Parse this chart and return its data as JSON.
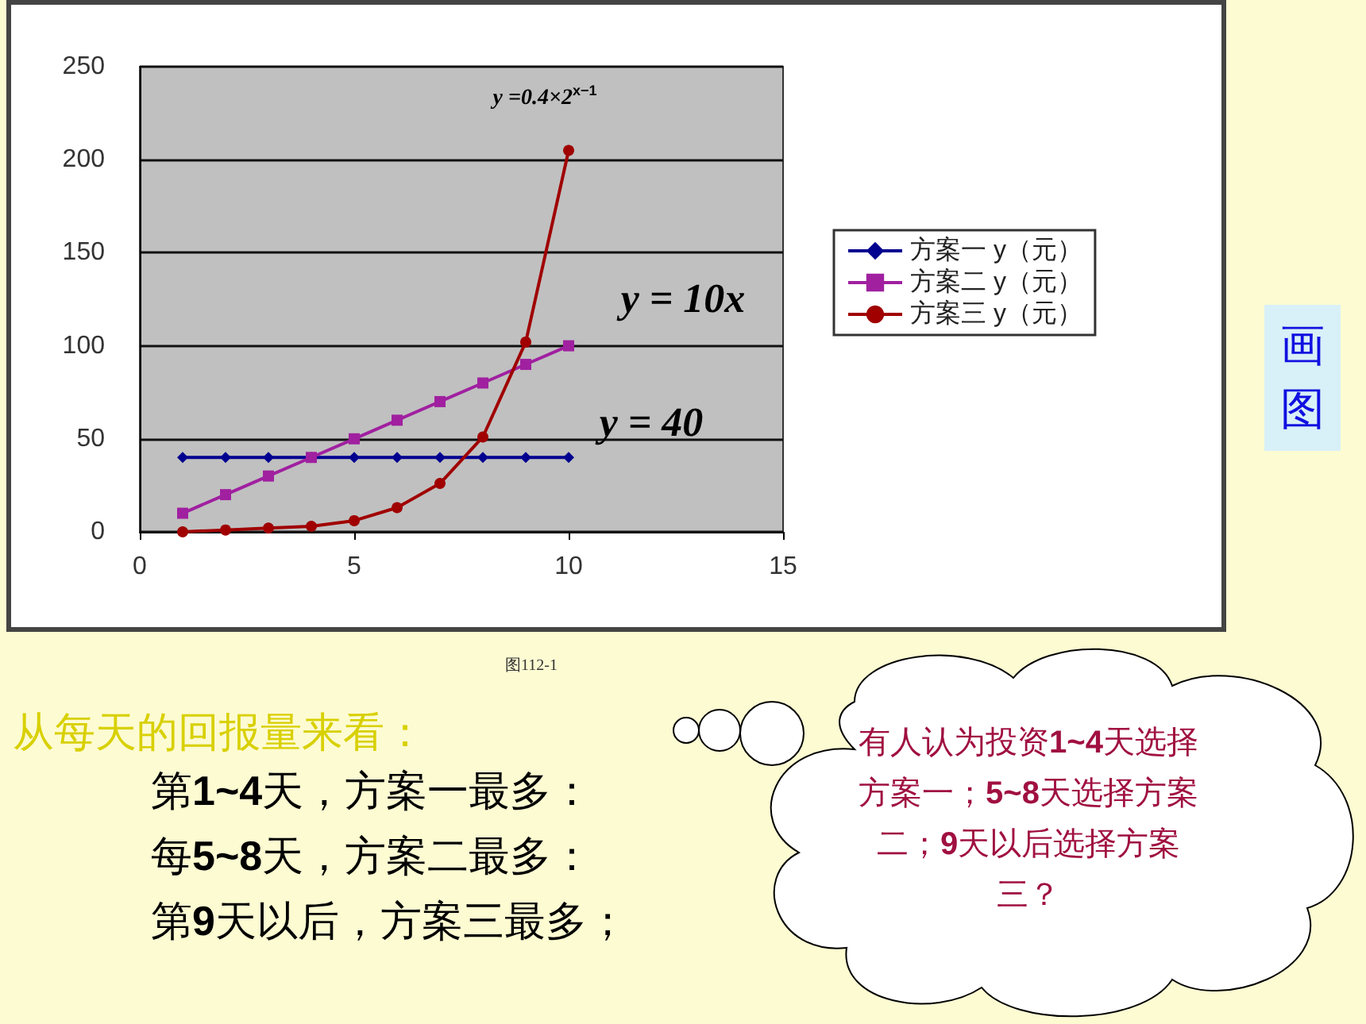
{
  "chart_data": {
    "type": "line",
    "x": [
      1,
      2,
      3,
      4,
      5,
      6,
      7,
      8,
      9,
      10
    ],
    "series": [
      {
        "name": "方案一 y（元）",
        "color": "#000090",
        "marker": "diamond",
        "values": [
          40,
          40,
          40,
          40,
          40,
          40,
          40,
          40,
          40,
          40
        ]
      },
      {
        "name": "方案二 y（元）",
        "color": "#a020a0",
        "marker": "square",
        "values": [
          10,
          20,
          30,
          40,
          50,
          60,
          70,
          80,
          90,
          100
        ]
      },
      {
        "name": "方案三 y（元）",
        "color": "#a00000",
        "marker": "circle",
        "values": [
          0,
          1,
          2,
          3,
          6,
          13,
          26,
          51,
          102,
          205
        ]
      }
    ],
    "xlim": [
      0,
      15
    ],
    "xticks": [
      0,
      5,
      10,
      15
    ],
    "ylim": [
      0,
      250
    ],
    "yticks": [
      0,
      50,
      100,
      150,
      200,
      250
    ],
    "grid": "y",
    "legend": "right",
    "line_style": "solid",
    "annotations": [
      "y =0.4×2$^{x−1}$",
      "y = 10x",
      "y = 40",
      "画图",
      "图112-1",
      "从每天的回报量来看：",
      "第1~4天，方案一最多：",
      "每5~8天，方案二最多：",
      "第9天以后，方案三最多；",
      "有人认为投资1~4天选择方案一；5~8天选择方案二；9天以后选择方案三？"
    ]
  }
}
